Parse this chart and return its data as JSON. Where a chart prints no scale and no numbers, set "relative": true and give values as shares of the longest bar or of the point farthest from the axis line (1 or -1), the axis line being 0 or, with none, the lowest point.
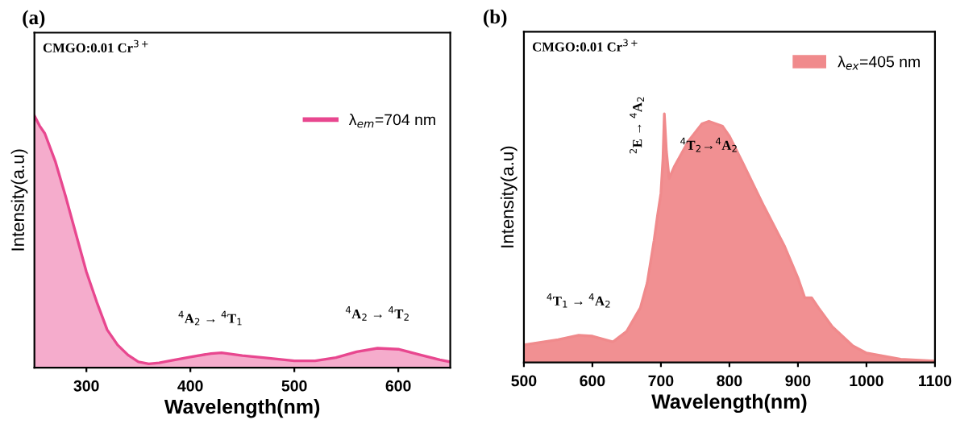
{
  "chart_data": [
    {
      "type": "area",
      "title": "(a)",
      "xlabel": "Wavelength(nm)",
      "ylabel": "Intensity(a.u)",
      "relative": true,
      "xlim": [
        250,
        650
      ],
      "xticks": [
        300,
        400,
        500,
        600
      ],
      "legend": "top right",
      "grid": false,
      "annotations": [
        "CMGO:0.01 Cr$^{3+}$",
        {
          "text": "$^{4}$A$_{2}$ → $^{4}$T$_{1}$",
          "x": 430,
          "y": 0.059
        },
        {
          "text": "$^{4}$A$_{2}$ → $^{4}$T$_{2}$",
          "x": 580,
          "y": 0.077
        }
      ],
      "series": [
        {
          "name": "λ$_{em}$=704 nm",
          "color": "#e8478f",
          "x": [
            250,
            255,
            260,
            270,
            280,
            290,
            300,
            310,
            320,
            330,
            340,
            350,
            360,
            370,
            380,
            400,
            420,
            430,
            450,
            470,
            500,
            520,
            540,
            560,
            580,
            600,
            620,
            640,
            650
          ],
          "values": [
            1.0,
            0.96,
            0.93,
            0.82,
            0.68,
            0.53,
            0.38,
            0.26,
            0.15,
            0.09,
            0.05,
            0.023,
            0.015,
            0.019,
            0.027,
            0.042,
            0.056,
            0.059,
            0.048,
            0.04,
            0.027,
            0.027,
            0.04,
            0.063,
            0.077,
            0.073,
            0.052,
            0.031,
            0.023
          ]
        }
      ]
    },
    {
      "type": "area",
      "title": "(b)",
      "xlabel": "Wavelength(nm)",
      "ylabel": "Intensity(a.u)",
      "relative": true,
      "xlim": [
        500,
        1100
      ],
      "xticks": [
        500,
        600,
        700,
        800,
        900,
        1000,
        1100
      ],
      "legend": "top right",
      "grid": false,
      "annotations": [
        "CMGO:0.01 Cr$^{3+}$",
        {
          "text": "$^{4}$T$_{1}$ → $^{4}$A$_{2}$",
          "x": 580,
          "y": 0.11
        },
        {
          "text": "$^{2}$E → $^{4}$A$_{2}$",
          "x": 705,
          "y": 1.0
        },
        {
          "text": "$^{4}$T$_{2}$→$^{4}$A$_{2}$",
          "x": 770,
          "y": 0.97
        }
      ],
      "series": [
        {
          "name": "λ$_{ex}$=405 nm",
          "color": "#f08a8c",
          "x": [
            500,
            550,
            580,
            600,
            630,
            650,
            670,
            680,
            690,
            695,
            700,
            703,
            705,
            708,
            712,
            720,
            740,
            760,
            770,
            790,
            800,
            820,
            850,
            880,
            900,
            910,
            920,
            930,
            950,
            980,
            1000,
            1050,
            1100
          ],
          "values": [
            0.071,
            0.092,
            0.11,
            0.106,
            0.083,
            0.125,
            0.22,
            0.32,
            0.49,
            0.59,
            0.68,
            0.82,
            1.0,
            0.85,
            0.74,
            0.79,
            0.89,
            0.96,
            0.97,
            0.95,
            0.91,
            0.8,
            0.63,
            0.47,
            0.34,
            0.26,
            0.26,
            0.22,
            0.144,
            0.067,
            0.038,
            0.013,
            0.006
          ]
        }
      ]
    }
  ]
}
